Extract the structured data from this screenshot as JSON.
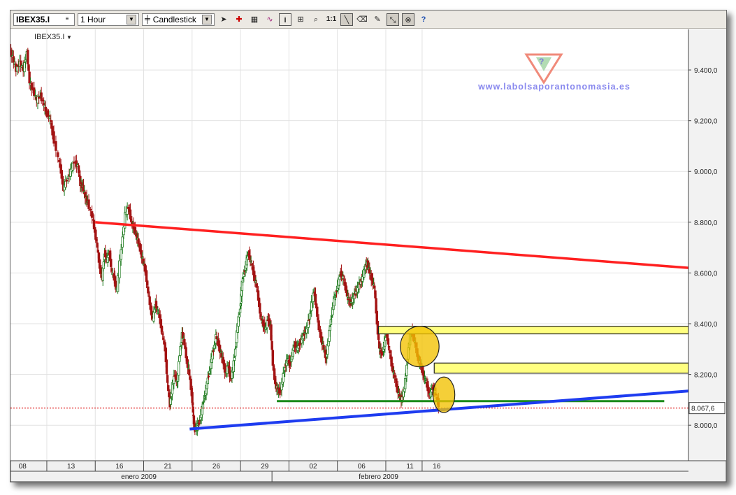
{
  "toolbar": {
    "symbol": "IBEX35.I",
    "interval": "1 Hour",
    "chart_style": "Candlestick",
    "icons": [
      "cursor-icon",
      "crosshair-icon",
      "grid-icon",
      "indicator-icon",
      "info-icon",
      "zoom-fit-icon",
      "magnify-icon",
      "ratio-icon",
      "trendline-icon",
      "eraser-icon",
      "paint-icon",
      "select-icon",
      "magnet-icon",
      "help-icon"
    ],
    "ratio_label": "1:1",
    "info_label": "i",
    "help_label": "?"
  },
  "watermark": "www.labolsaporantonomasia.es",
  "chart_data": {
    "type": "candlestick",
    "series_label": "IBEX35.I",
    "ylim": [
      7860,
      9560
    ],
    "y_ticks": [
      8000,
      8200,
      8400,
      8600,
      8800,
      9000,
      9200,
      9400
    ],
    "y_tick_labels": [
      "8.000,0",
      "8.200,0",
      "8.400,0",
      "8.600,0",
      "8.800,0",
      "9.000,0",
      "9.200,0",
      "9.400,0"
    ],
    "last_price": 8067.6,
    "last_price_label": "8.067,6",
    "x_range": [
      0,
      28
    ],
    "day_ticks": [
      {
        "x": 0.5,
        "label": "08"
      },
      {
        "x": 2.5,
        "label": "13"
      },
      {
        "x": 4.5,
        "label": "16"
      },
      {
        "x": 6.5,
        "label": "21"
      },
      {
        "x": 8.5,
        "label": "26"
      },
      {
        "x": 10.5,
        "label": "29"
      },
      {
        "x": 12.5,
        "label": "02"
      },
      {
        "x": 14.5,
        "label": "06"
      },
      {
        "x": 16.5,
        "label": "11"
      },
      {
        "x": 17.6,
        "label": "16"
      }
    ],
    "day_separators": [
      1.5,
      3.5,
      5.5,
      7.5,
      9.5,
      11.5,
      13.5,
      15.5,
      17.0
    ],
    "month_labels": [
      {
        "x": 5.3,
        "label": "enero 2009"
      },
      {
        "x": 15.2,
        "label": "febrero 2009"
      }
    ],
    "month_separator": 10.8,
    "closes": [
      [
        0.0,
        9480
      ],
      [
        0.1,
        9450
      ],
      [
        0.25,
        9400
      ],
      [
        0.4,
        9430
      ],
      [
        0.55,
        9400
      ],
      [
        0.7,
        9470
      ],
      [
        0.8,
        9350
      ],
      [
        0.95,
        9320
      ],
      [
        1.1,
        9280
      ],
      [
        1.25,
        9300
      ],
      [
        1.4,
        9260
      ],
      [
        1.5,
        9230
      ],
      [
        1.65,
        9210
      ],
      [
        1.75,
        9150
      ],
      [
        2.0,
        9050
      ],
      [
        2.1,
        9000
      ],
      [
        2.2,
        8930
      ],
      [
        2.35,
        8970
      ],
      [
        2.5,
        9000
      ],
      [
        2.65,
        9040
      ],
      [
        2.8,
        9020
      ],
      [
        2.9,
        8950
      ],
      [
        3.0,
        8940
      ],
      [
        3.1,
        8900
      ],
      [
        3.2,
        8880
      ],
      [
        3.4,
        8820
      ],
      [
        3.5,
        8760
      ],
      [
        3.6,
        8700
      ],
      [
        3.7,
        8620
      ],
      [
        3.8,
        8580
      ],
      [
        3.9,
        8680
      ],
      [
        4.0,
        8650
      ],
      [
        4.1,
        8680
      ],
      [
        4.2,
        8600
      ],
      [
        4.3,
        8580
      ],
      [
        4.4,
        8530
      ],
      [
        4.6,
        8700
      ],
      [
        4.75,
        8830
      ],
      [
        4.9,
        8860
      ],
      [
        5.0,
        8800
      ],
      [
        5.1,
        8780
      ],
      [
        5.2,
        8750
      ],
      [
        5.3,
        8720
      ],
      [
        5.4,
        8680
      ],
      [
        5.5,
        8640
      ],
      [
        5.6,
        8600
      ],
      [
        5.7,
        8520
      ],
      [
        5.8,
        8460
      ],
      [
        5.9,
        8420
      ],
      [
        6.0,
        8480
      ],
      [
        6.1,
        8450
      ],
      [
        6.2,
        8410
      ],
      [
        6.3,
        8350
      ],
      [
        6.4,
        8300
      ],
      [
        6.5,
        8160
      ],
      [
        6.6,
        8080
      ],
      [
        6.7,
        8160
      ],
      [
        6.8,
        8200
      ],
      [
        6.9,
        8170
      ],
      [
        7.0,
        8280
      ],
      [
        7.1,
        8360
      ],
      [
        7.2,
        8320
      ],
      [
        7.3,
        8250
      ],
      [
        7.4,
        8200
      ],
      [
        7.5,
        8120
      ],
      [
        7.55,
        8050
      ],
      [
        7.6,
        7990
      ],
      [
        7.7,
        7990
      ],
      [
        7.8,
        8010
      ],
      [
        7.9,
        8050
      ],
      [
        8.0,
        8100
      ],
      [
        8.1,
        8150
      ],
      [
        8.2,
        8200
      ],
      [
        8.3,
        8250
      ],
      [
        8.4,
        8300
      ],
      [
        8.5,
        8350
      ],
      [
        8.6,
        8320
      ],
      [
        8.7,
        8280
      ],
      [
        8.8,
        8250
      ],
      [
        8.9,
        8200
      ],
      [
        9.0,
        8240
      ],
      [
        9.1,
        8180
      ],
      [
        9.2,
        8220
      ],
      [
        9.3,
        8300
      ],
      [
        9.4,
        8400
      ],
      [
        9.5,
        8460
      ],
      [
        9.55,
        8540
      ],
      [
        9.65,
        8600
      ],
      [
        9.75,
        8640
      ],
      [
        9.85,
        8680
      ],
      [
        9.95,
        8640
      ],
      [
        10.05,
        8600
      ],
      [
        10.15,
        8560
      ],
      [
        10.25,
        8500
      ],
      [
        10.35,
        8420
      ],
      [
        10.45,
        8400
      ],
      [
        10.55,
        8380
      ],
      [
        10.65,
        8420
      ],
      [
        10.75,
        8390
      ],
      [
        10.85,
        8240
      ],
      [
        10.95,
        8160
      ],
      [
        11.05,
        8140
      ],
      [
        11.15,
        8130
      ],
      [
        11.25,
        8180
      ],
      [
        11.35,
        8230
      ],
      [
        11.45,
        8260
      ],
      [
        11.55,
        8240
      ],
      [
        11.65,
        8280
      ],
      [
        11.75,
        8320
      ],
      [
        11.85,
        8300
      ],
      [
        11.95,
        8320
      ],
      [
        12.05,
        8340
      ],
      [
        12.15,
        8360
      ],
      [
        12.25,
        8380
      ],
      [
        12.35,
        8420
      ],
      [
        12.45,
        8480
      ],
      [
        12.55,
        8530
      ],
      [
        12.65,
        8460
      ],
      [
        12.75,
        8380
      ],
      [
        12.85,
        8340
      ],
      [
        12.95,
        8300
      ],
      [
        13.05,
        8260
      ],
      [
        13.15,
        8340
      ],
      [
        13.25,
        8420
      ],
      [
        13.35,
        8480
      ],
      [
        13.45,
        8520
      ],
      [
        13.55,
        8560
      ],
      [
        13.65,
        8600
      ],
      [
        13.75,
        8580
      ],
      [
        13.85,
        8540
      ],
      [
        13.95,
        8500
      ],
      [
        14.05,
        8480
      ],
      [
        14.15,
        8500
      ],
      [
        14.25,
        8520
      ],
      [
        14.35,
        8540
      ],
      [
        14.45,
        8560
      ],
      [
        14.55,
        8580
      ],
      [
        14.65,
        8620
      ],
      [
        14.75,
        8640
      ],
      [
        14.85,
        8600
      ],
      [
        14.95,
        8570
      ],
      [
        15.05,
        8540
      ],
      [
        15.15,
        8400
      ],
      [
        15.25,
        8300
      ],
      [
        15.35,
        8280
      ],
      [
        15.45,
        8320
      ],
      [
        15.55,
        8360
      ],
      [
        15.65,
        8300
      ],
      [
        15.75,
        8240
      ],
      [
        15.85,
        8200
      ],
      [
        15.95,
        8160
      ],
      [
        16.05,
        8120
      ],
      [
        16.15,
        8100
      ],
      [
        16.25,
        8130
      ],
      [
        16.35,
        8200
      ],
      [
        16.45,
        8300
      ],
      [
        16.55,
        8380
      ],
      [
        16.65,
        8350
      ],
      [
        16.75,
        8310
      ],
      [
        16.85,
        8260
      ],
      [
        16.95,
        8240
      ],
      [
        17.05,
        8200
      ],
      [
        17.15,
        8180
      ],
      [
        17.25,
        8140
      ],
      [
        17.35,
        8120
      ],
      [
        17.45,
        8150
      ],
      [
        17.55,
        8130
      ],
      [
        17.7,
        8080
      ]
    ],
    "annotations": {
      "resistance": {
        "from": [
          3.5,
          8800
        ],
        "to": [
          28,
          8620
        ],
        "color": "#ff2020"
      },
      "support": {
        "from": [
          7.4,
          7985
        ],
        "to": [
          28,
          8135
        ],
        "color": "#1e3cf0"
      },
      "neckline": {
        "from": [
          11.0,
          8095
        ],
        "to": [
          27.0,
          8095
        ],
        "color": "#1a8a1a"
      },
      "zone1": {
        "from": [
          15.2,
          8360
        ],
        "to": [
          28,
          8390
        ],
        "color": "#ffff80"
      },
      "zone2": {
        "from": [
          17.5,
          8205
        ],
        "to": [
          28,
          8245
        ],
        "color": "#ffff80"
      },
      "ellipse1": {
        "x": 16.9,
        "y": 8310,
        "rx": 0.8,
        "ry": 80,
        "color": "#f2c200"
      },
      "ellipse2": {
        "x": 17.9,
        "y": 8120,
        "rx": 0.45,
        "ry": 70,
        "color": "#f2c200"
      }
    }
  }
}
